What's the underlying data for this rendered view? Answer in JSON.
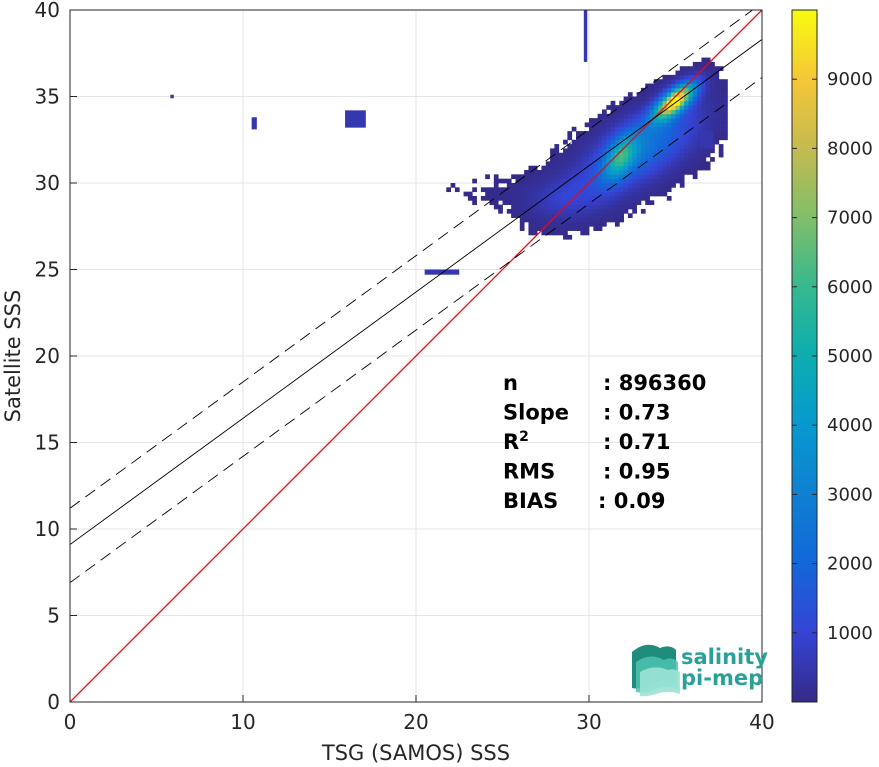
{
  "chart_data": {
    "type": "heatmap",
    "title": "",
    "xlabel": "TSG (SAMOS) SSS",
    "ylabel": "Satellite SSS",
    "xlim": [
      0,
      40
    ],
    "ylim": [
      0,
      40
    ],
    "xticks": [
      "0",
      "10",
      "20",
      "30",
      "40"
    ],
    "yticks": [
      "0",
      "5",
      "10",
      "15",
      "20",
      "25",
      "30",
      "35",
      "40"
    ],
    "grid": true,
    "colorbar": {
      "colormap": "parula",
      "range": [
        0,
        10000
      ],
      "ticks": [
        "1000",
        "2000",
        "3000",
        "4000",
        "5000",
        "6000",
        "7000",
        "8000",
        "9000"
      ]
    },
    "lines": [
      {
        "name": "identity",
        "color": "#ff0000",
        "style": "solid",
        "x": [
          0,
          40
        ],
        "y": [
          0,
          40
        ]
      },
      {
        "name": "fit",
        "color": "#000000",
        "style": "solid",
        "x": [
          0,
          40
        ],
        "y": [
          9.1,
          38.3
        ]
      },
      {
        "name": "fit-upper",
        "color": "#000000",
        "style": "dashed",
        "x": [
          0,
          40
        ],
        "y": [
          11.2,
          40.4
        ]
      },
      {
        "name": "fit-lower",
        "color": "#000000",
        "style": "dashed",
        "x": [
          0,
          40
        ],
        "y": [
          6.9,
          36.1
        ]
      }
    ],
    "density_clusters": [
      {
        "x": 33.0,
        "y": 32.0,
        "sx": 2.6,
        "sy": 1.9,
        "rho": 0.62,
        "weight": 1.0
      },
      {
        "x": 35.0,
        "y": 34.8,
        "sx": 0.9,
        "sy": 0.8,
        "rho": 0.7,
        "weight": 2.2
      },
      {
        "x": 31.8,
        "y": 31.5,
        "sx": 0.7,
        "sy": 1.0,
        "rho": 0.5,
        "weight": 0.9
      },
      {
        "x": 28.5,
        "y": 29.0,
        "sx": 1.7,
        "sy": 1.0,
        "rho": 0.1,
        "weight": 0.35
      },
      {
        "x": 24.5,
        "y": 29.6,
        "sx": 2.5,
        "sy": 0.7,
        "rho": 0.0,
        "weight": 0.08
      }
    ],
    "outlier_patches": [
      {
        "x": 10.5,
        "y": 33.1,
        "w": 0.3,
        "h": 0.7
      },
      {
        "x": 15.9,
        "y": 33.2,
        "w": 1.2,
        "h": 1.0
      },
      {
        "x": 5.8,
        "y": 34.9,
        "w": 0.2,
        "h": 0.2
      },
      {
        "x": 20.5,
        "y": 24.7,
        "w": 2.0,
        "h": 0.3
      },
      {
        "x": 29.7,
        "y": 37.0,
        "w": 0.2,
        "h": 3.0
      },
      {
        "x": 36.4,
        "y": 32.0,
        "w": 0.8,
        "h": 1.0
      }
    ],
    "stats": [
      {
        "label": "n",
        "sup": "",
        "value": ": 896360"
      },
      {
        "label": "Slope",
        "sup": "",
        "value": ": 0.73"
      },
      {
        "label": "R",
        "sup": "2",
        "value": ": 0.71"
      },
      {
        "label": "RMS",
        "sup": "",
        "value": ": 0.95"
      },
      {
        "label": "BIAS",
        "sup": "",
        "value": ": 0.09"
      }
    ]
  },
  "logo": {
    "line1": "salinity",
    "line2": "pi-mep",
    "color": "#2aa198"
  }
}
